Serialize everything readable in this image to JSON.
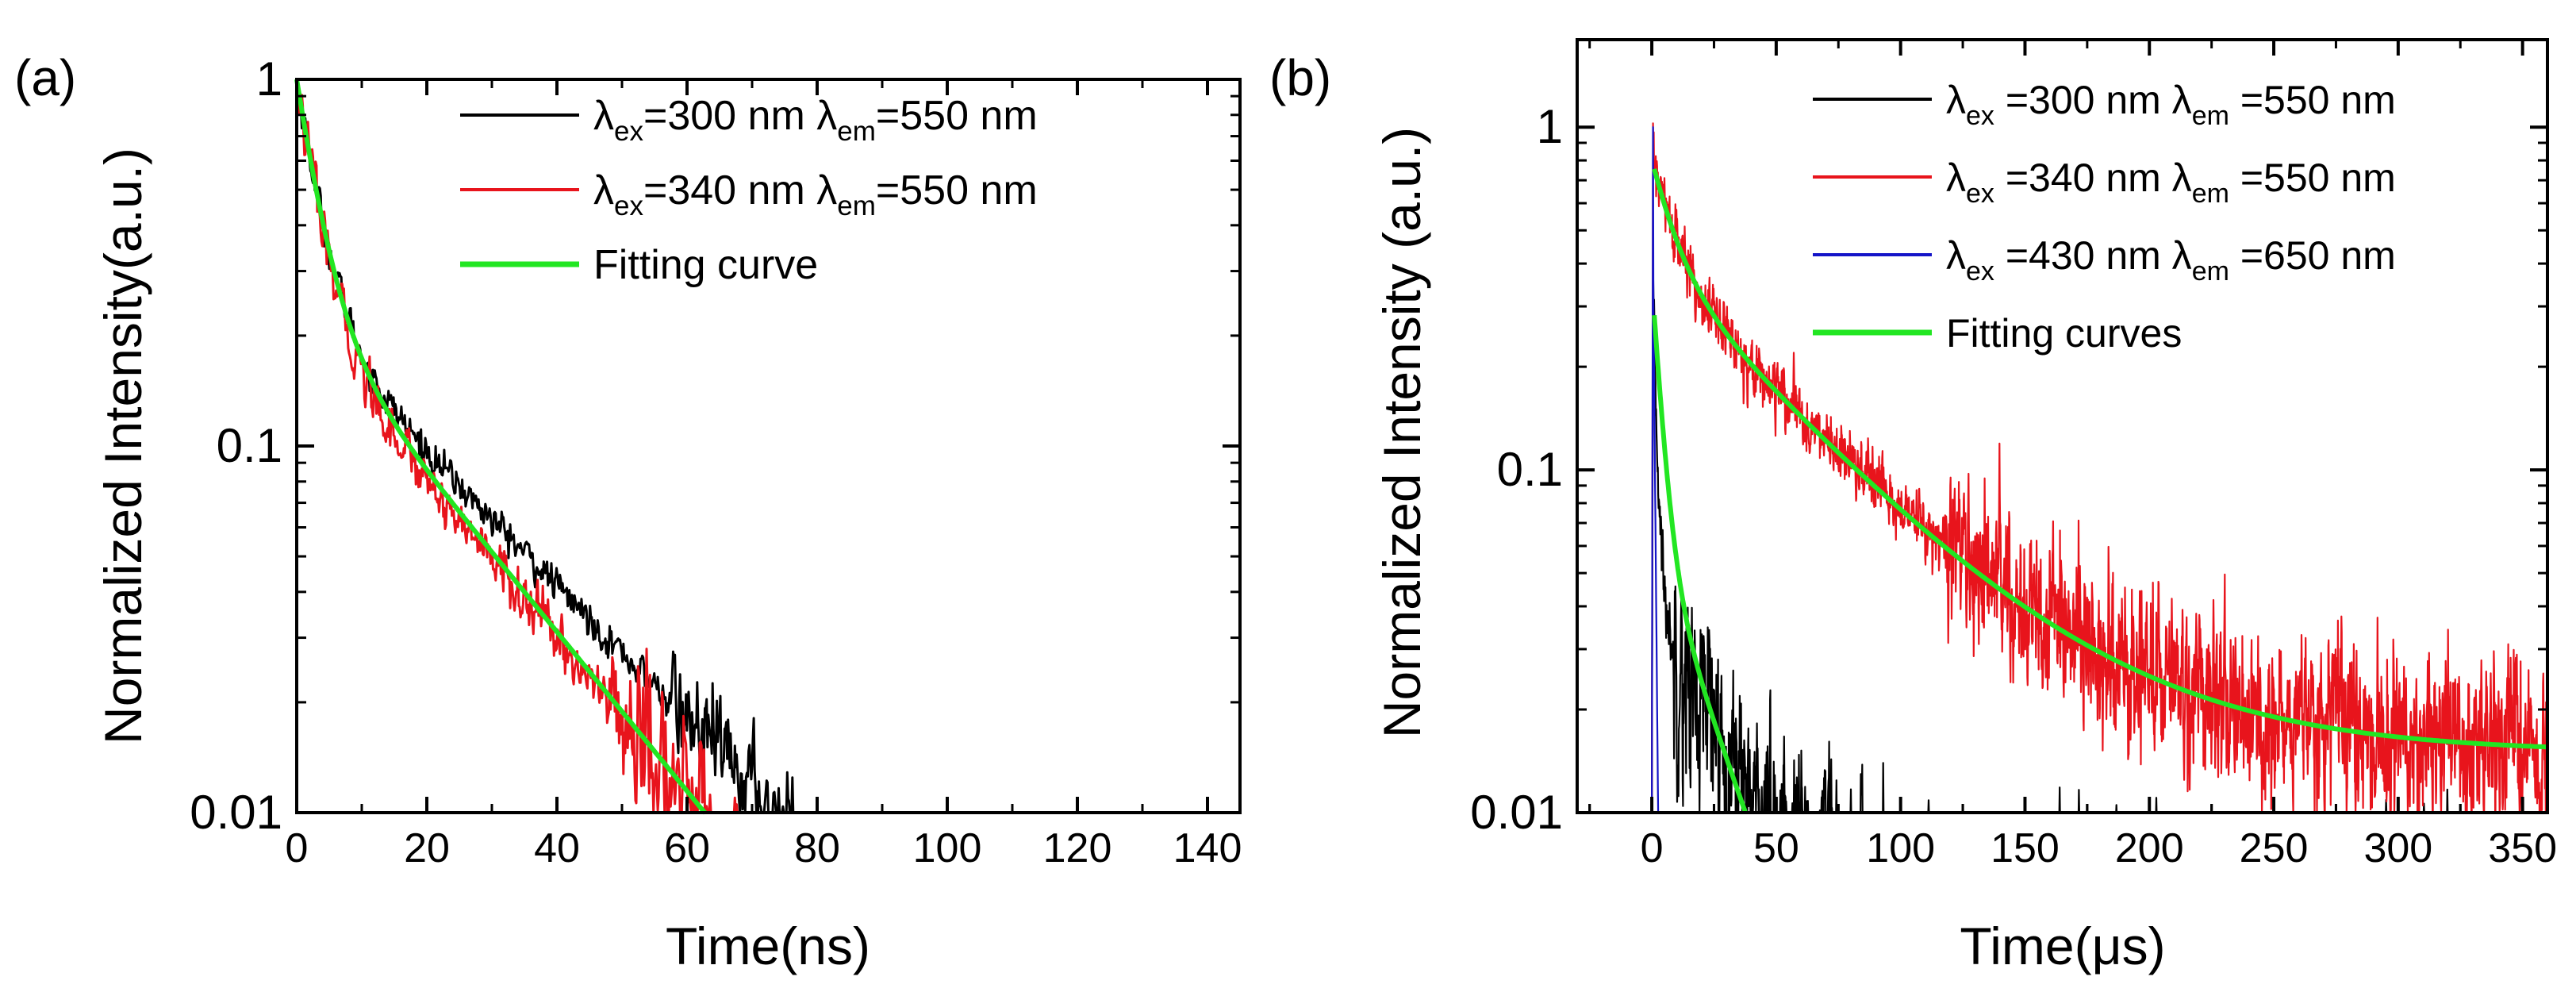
{
  "colors": {
    "black": "#000000",
    "red": "#e8141c",
    "blue": "#1414c8",
    "green": "#22e622"
  },
  "chart_data": [
    {
      "type": "line",
      "panel_label": "(a)",
      "title": "",
      "xlabel": "Time(ns)",
      "ylabel": "Normalized Intensity(a.u.)",
      "xlim": [
        0,
        145
      ],
      "ylim": [
        0.01,
        1
      ],
      "yscale": "log",
      "xticks": [
        0,
        20,
        40,
        60,
        80,
        100,
        120,
        140
      ],
      "xtick_labels": [
        "0",
        "20",
        "40",
        "60",
        "80",
        "100",
        "120",
        "140"
      ],
      "yticks": [
        0.01,
        0.1,
        1
      ],
      "ytick_labels": [
        "0.01",
        "0.1",
        "1"
      ],
      "legend_position": "top-right",
      "series": [
        {
          "name": "λex=300 nm λem=550 nm",
          "label": {
            "l1": "λ",
            "s1": "ex",
            "m": "=300 nm λ",
            "s2": "em",
            "t": "=550 nm"
          },
          "color": "#000000",
          "model": {
            "a1": 0.78,
            "tau1": 3.2,
            "a2": 0.22,
            "tau2": 24
          },
          "noise_start": 0.02,
          "noise_rel": 0.28
        },
        {
          "name": "λex=340 nm λem=550 nm",
          "label": {
            "l1": "λ",
            "s1": "ex",
            "m": "=340 nm λ",
            "s2": "em",
            "t": "=550 nm"
          },
          "color": "#e8141c",
          "model": {
            "a1": 0.78,
            "tau1": 3.0,
            "a2": 0.22,
            "tau2": 20
          },
          "noise_start": 0.02,
          "noise_rel": 0.42
        },
        {
          "name": "Fitting curve",
          "label": {
            "l1": "Fitting curve",
            "s1": "",
            "m": "",
            "s2": "",
            "t": ""
          },
          "color": "#22e622",
          "fit": true,
          "model": {
            "a1": 0.77,
            "tau1": 3.2,
            "a2": 0.23,
            "tau2": 20
          },
          "x_end": 92
        }
      ]
    },
    {
      "type": "line",
      "panel_label": "(b)",
      "title": "",
      "xlabel": "Time(μs)",
      "ylabel": "Normalized Intensity (a.u.)",
      "xlim": [
        -30,
        360
      ],
      "ylim": [
        0.01,
        1.8
      ],
      "yscale": "log",
      "xticks": [
        0,
        50,
        100,
        150,
        200,
        250,
        300,
        350
      ],
      "xtick_labels": [
        "0",
        "50",
        "100",
        "150",
        "200",
        "250",
        "300",
        "350"
      ],
      "yticks": [
        0.01,
        0.1,
        1
      ],
      "ytick_labels": [
        "0.01",
        "0.1",
        "1"
      ],
      "legend_position": "top-right",
      "series": [
        {
          "name": "λex=300 nm λem=550 nm",
          "label": {
            "l1": "λ",
            "s1": "ex",
            "m": " =300 nm λ",
            "s2": "em",
            "t": " =550 nm"
          },
          "color": "#000000",
          "model": {
            "peak": 0.37,
            "a1": 0.35,
            "tau1": 1.5,
            "a2": 0.035,
            "tau2": 26,
            "c": 0.004
          },
          "noise_start": 0.03,
          "noise_rel": 0.55
        },
        {
          "name": "λex=340 nm λem=550 nm",
          "label": {
            "l1": "λ",
            "s1": "ex",
            "m": " =340 nm λ",
            "s2": "em",
            "t": " =550 nm"
          },
          "color": "#e8141c",
          "model": {
            "peak": 1.0,
            "a1": 0.41,
            "tau1": 9,
            "a2": 0.38,
            "tau2": 55,
            "c": 0.015
          },
          "noise_start": 0.06,
          "noise_rel": 0.45
        },
        {
          "name": "λex=430 nm λem=650 nm",
          "label": {
            "l1": "λ",
            "s1": "ex",
            "m": " =430 nm λ",
            "s2": "em",
            "t": " =650 nm"
          },
          "color": "#1414c8",
          "model": {
            "peak": 1.0,
            "a1": 1.0,
            "tau1": 0.55,
            "a2": 0,
            "tau2": 1,
            "c": 0
          },
          "noise_start": 1,
          "noise_rel": 0
        },
        {
          "name": "Fitting curves",
          "label": {
            "l1": "Fitting curves",
            "s1": "",
            "m": "",
            "s2": "",
            "t": ""
          },
          "color": "#22e622",
          "fit": true,
          "fits": [
            {
              "a1": 0.41,
              "tau1": 9,
              "a2": 0.38,
              "tau2": 55,
              "c": 0.015,
              "x_start": 1,
              "x_end": 360
            },
            {
              "a1": 0.3,
              "tau1": 3.5,
              "a2": 0.06,
              "tau2": 21,
              "c": 0,
              "x_start": 1,
              "x_end": 80
            }
          ]
        }
      ]
    }
  ]
}
